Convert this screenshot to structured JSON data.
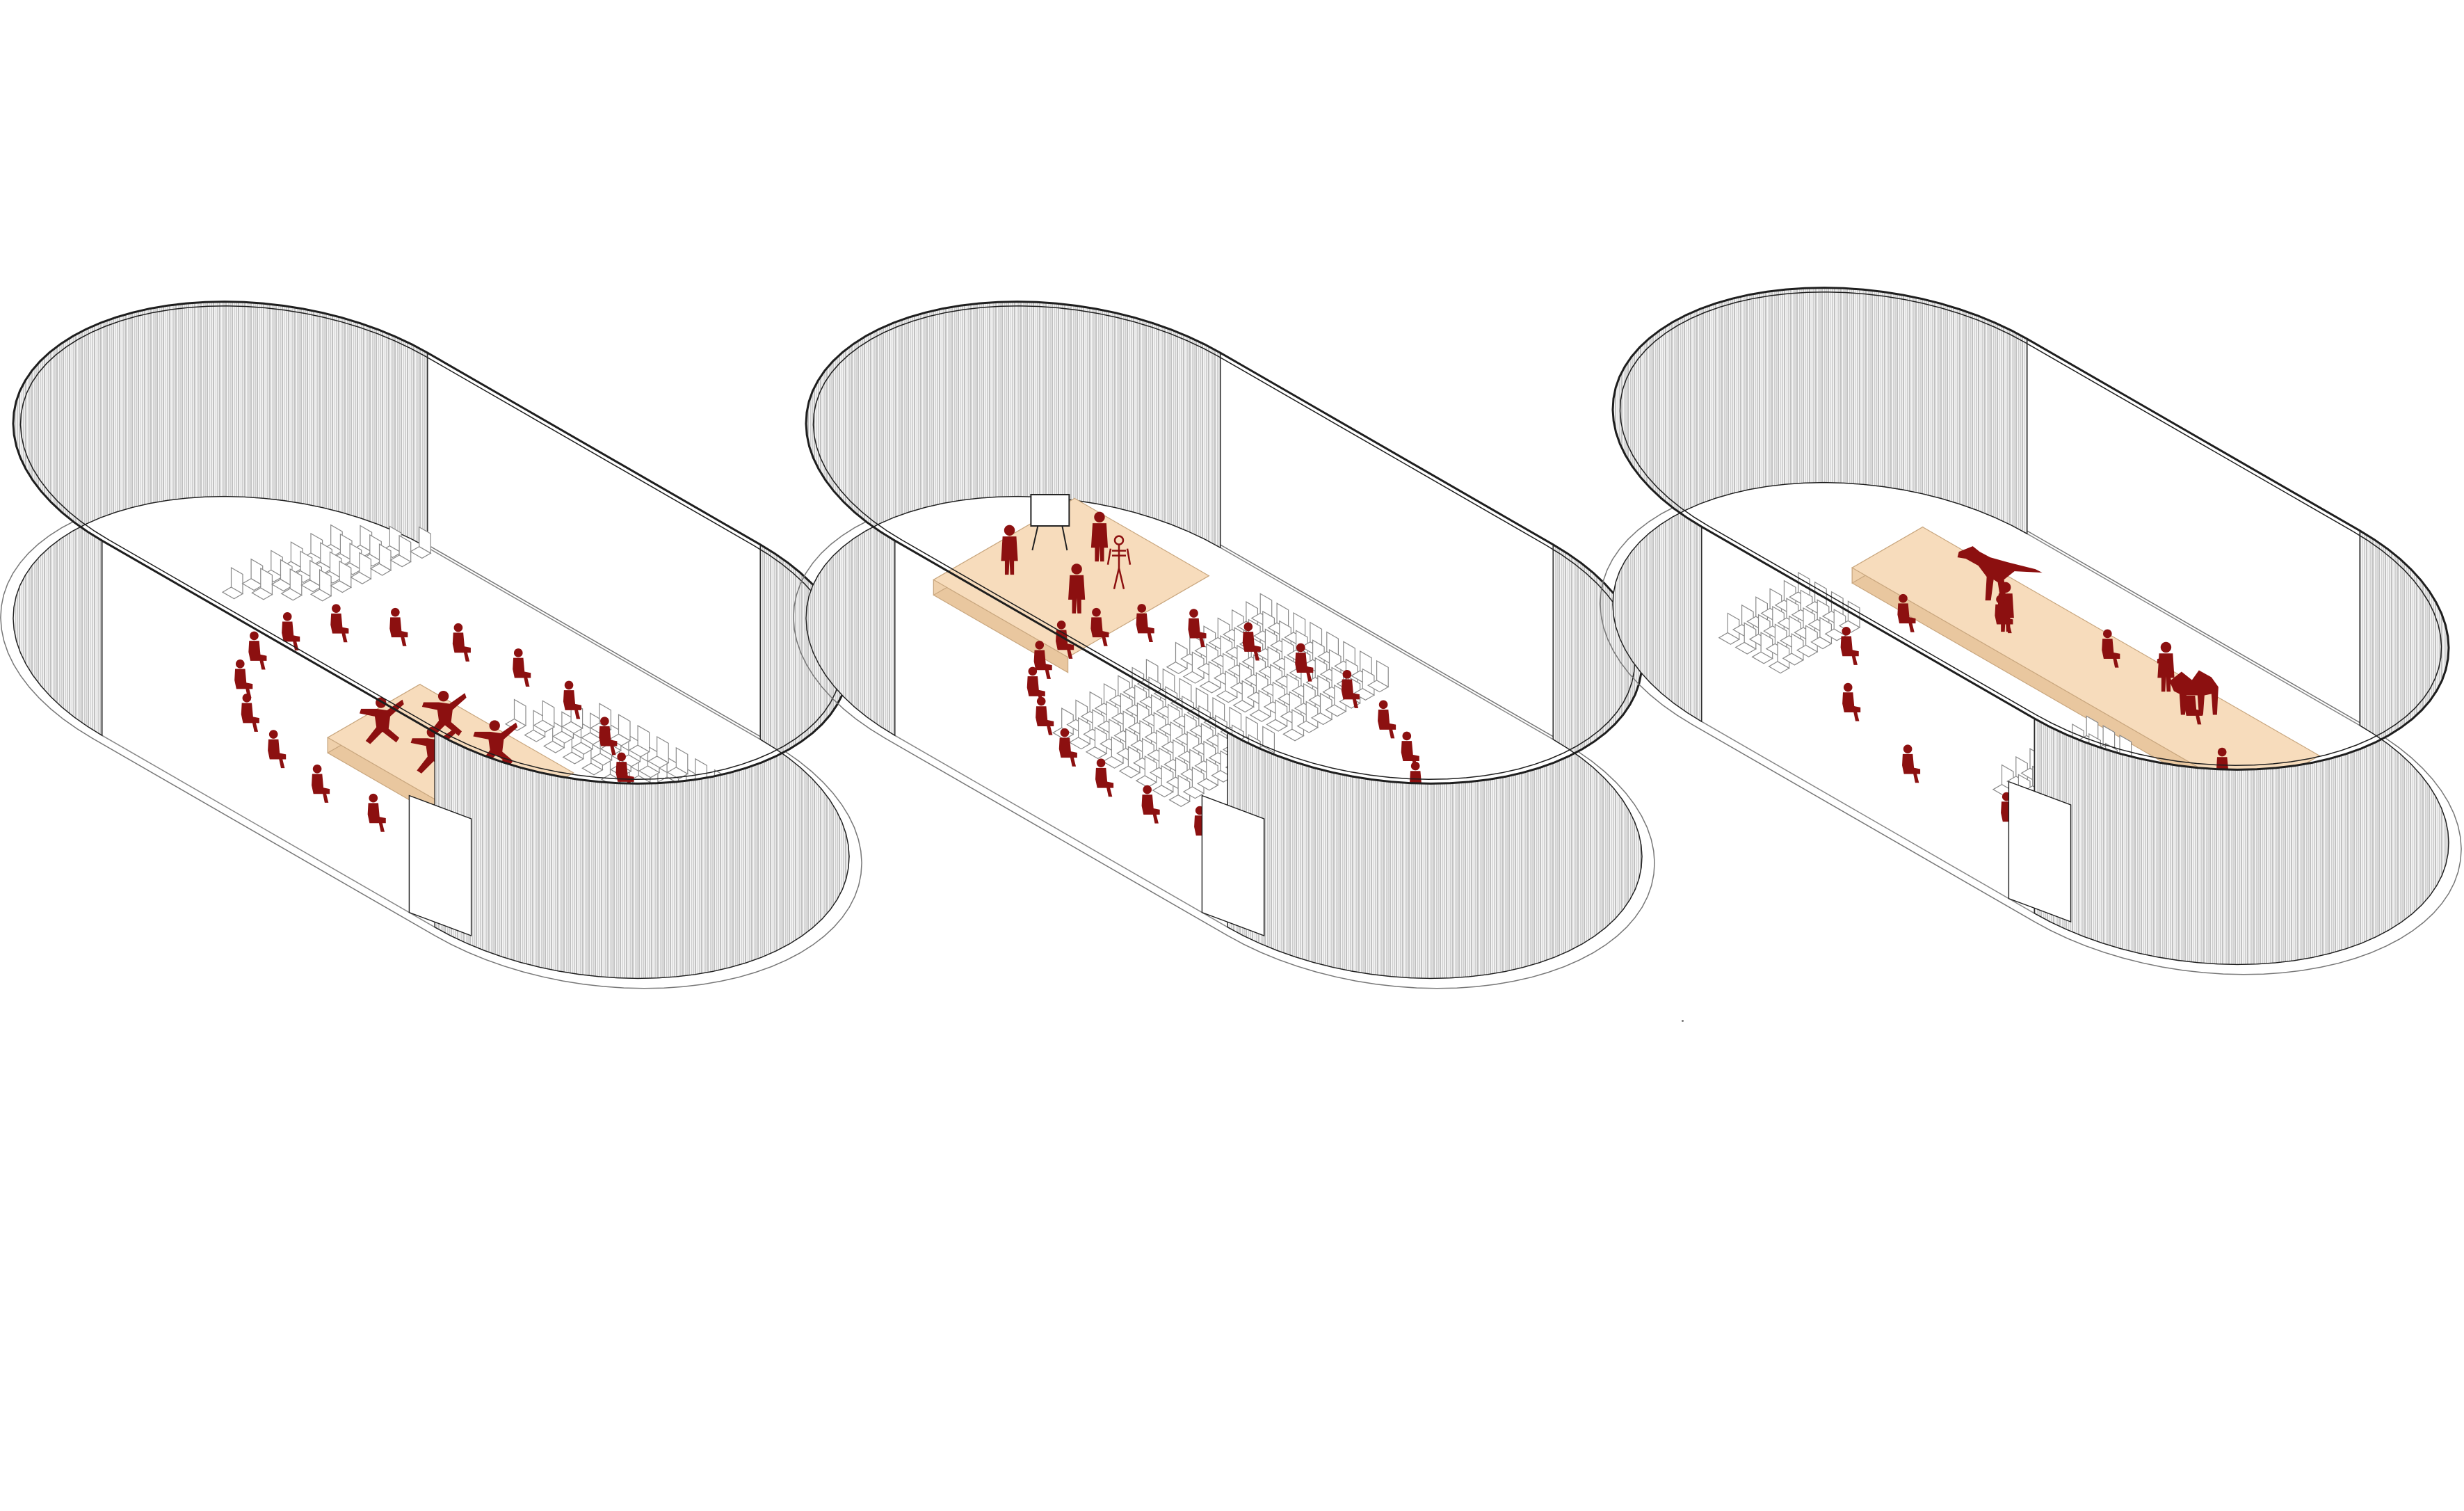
{
  "diagram": {
    "description_free": true,
    "colors": {
      "background": "#ffffff",
      "wall_fill": "#f2f2f2",
      "wall_stripe": "#9a9a9a",
      "outline": "#1e1e1e",
      "floor": "#ffffff",
      "stage": "#f7dcbc",
      "stage_edge": "#c9a77f",
      "seat": "#ffffff",
      "seat_line": "#8a8a8a",
      "figure": "#8c1010"
    },
    "venues": [
      {
        "id": "venue-1",
        "configuration": "theatre-in-the-round",
        "stage_orientation": "center",
        "performer_count": 5,
        "audience_count": 19,
        "props": []
      },
      {
        "id": "venue-2",
        "configuration": "lecture-hall",
        "stage_orientation": "corner",
        "performer_count": 3,
        "audience_count": 22,
        "props": [
          "easel-board",
          "skeleton"
        ]
      },
      {
        "id": "venue-3",
        "configuration": "exhibition-stage",
        "stage_orientation": "long-wall",
        "performer_count": 2,
        "audience_count": 11,
        "props": [
          "dinosaur",
          "camel"
        ]
      }
    ]
  }
}
